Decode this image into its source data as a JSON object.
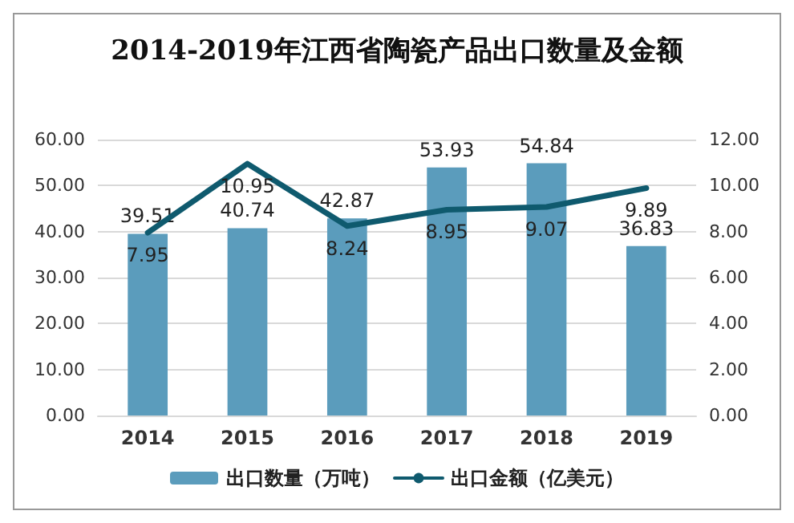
{
  "chart_data": {
    "type": "bar",
    "title": "2014-2019年江西省陶瓷产品出口数量及金额",
    "categories": [
      "2014",
      "2015",
      "2016",
      "2017",
      "2018",
      "2019"
    ],
    "series": [
      {
        "name": "出口数量（万吨）",
        "color": "#5b9cbc",
        "values": [
          39.51,
          40.74,
          42.87,
          53.93,
          54.84,
          36.83
        ]
      },
      {
        "name": "出口金额（亿美元）",
        "type": "line",
        "axis": "y2",
        "color": "#0f5a6e",
        "values": [
          7.95,
          10.95,
          8.24,
          8.95,
          9.07,
          9.89
        ]
      }
    ],
    "ylim": [
      0,
      60
    ],
    "yticks": [
      {
        "value": 0,
        "label": "0.00"
      },
      {
        "value": 10,
        "label": "10.00"
      },
      {
        "value": 20,
        "label": "20.00"
      },
      {
        "value": 30,
        "label": "30.00"
      },
      {
        "value": 40,
        "label": "40.00"
      },
      {
        "value": 50,
        "label": "50.00"
      },
      {
        "value": 60,
        "label": "60.00"
      }
    ],
    "y2lim": [
      0,
      12
    ],
    "y2ticks": [
      {
        "value": 0,
        "label": "0.00"
      },
      {
        "value": 2,
        "label": "2.00"
      },
      {
        "value": 4,
        "label": "4.00"
      },
      {
        "value": 6,
        "label": "6.00"
      },
      {
        "value": 8,
        "label": "8.00"
      },
      {
        "value": 10,
        "label": "10.00"
      },
      {
        "value": 12,
        "label": "12.00"
      }
    ],
    "grid": "y",
    "legend": "bottom",
    "data_labels": true,
    "marker": "none"
  }
}
